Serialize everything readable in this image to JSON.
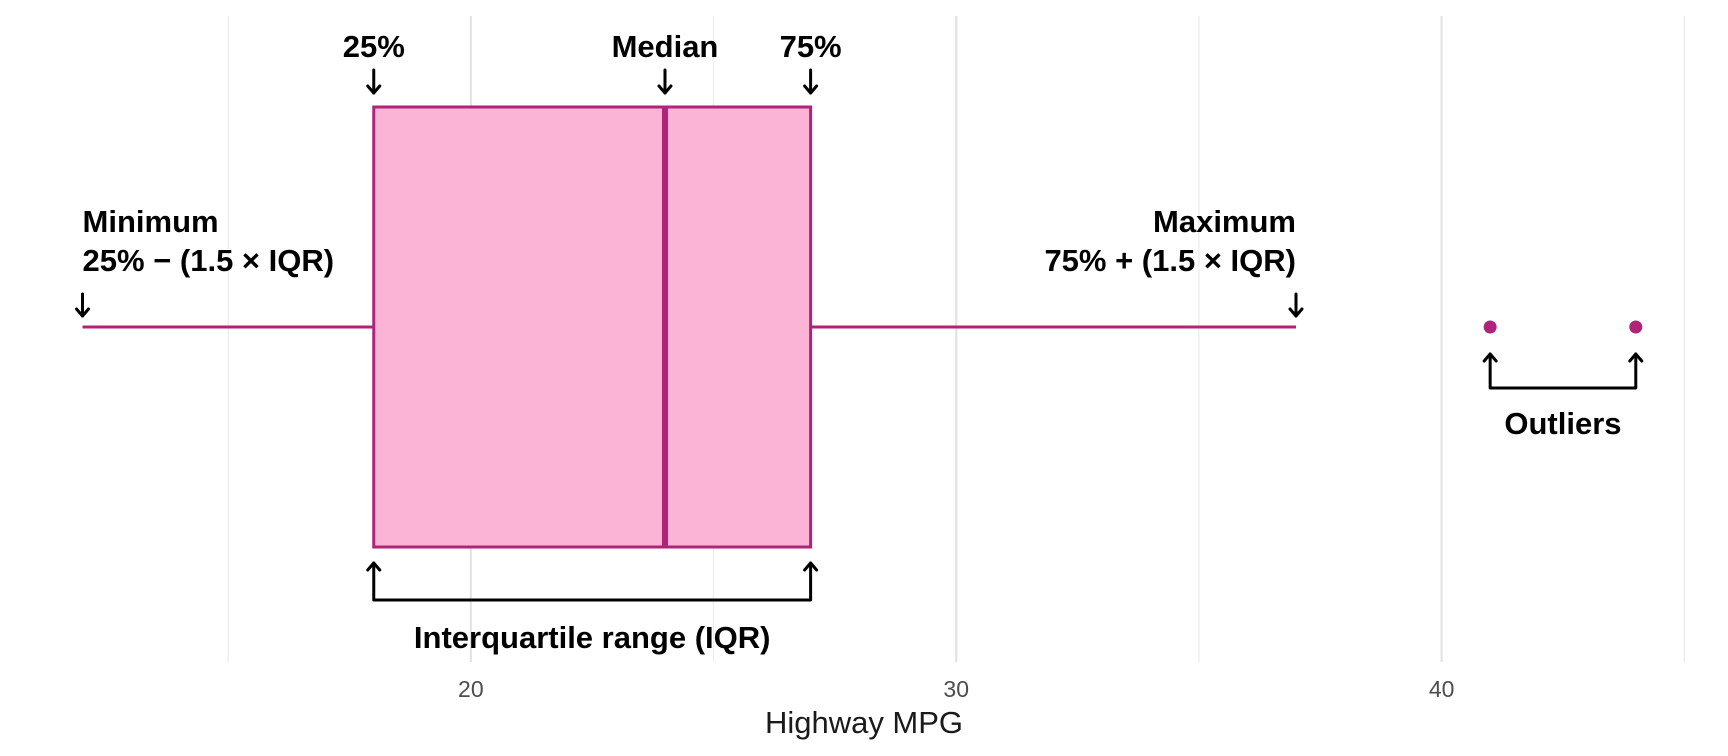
{
  "chart_data": {
    "type": "box",
    "xlabel": "Highway MPG",
    "x_ticks": [
      20,
      30,
      40
    ],
    "x_tick_labels": [
      "20",
      "30",
      "40"
    ],
    "xlim": [
      10.3,
      45.9
    ],
    "grid": true,
    "box": {
      "whisker_low": 12,
      "q1": 18,
      "median": 24,
      "q3": 27,
      "whisker_high": 37,
      "outliers": [
        41,
        44
      ]
    },
    "colors": {
      "fill": "#fbb4d6",
      "stroke": "#b0237a",
      "points": "#b0237a",
      "annotation": "#000000"
    },
    "annotations": {
      "q1": "25%",
      "median": "Median",
      "q3": "75%",
      "minimum_title": "Minimum",
      "minimum_formula": "25% − (1.5 × IQR)",
      "maximum_title": "Maximum",
      "maximum_formula": "75% + (1.5 × IQR)",
      "iqr": "Interquartile range (IQR)",
      "outliers": "Outliers"
    }
  }
}
